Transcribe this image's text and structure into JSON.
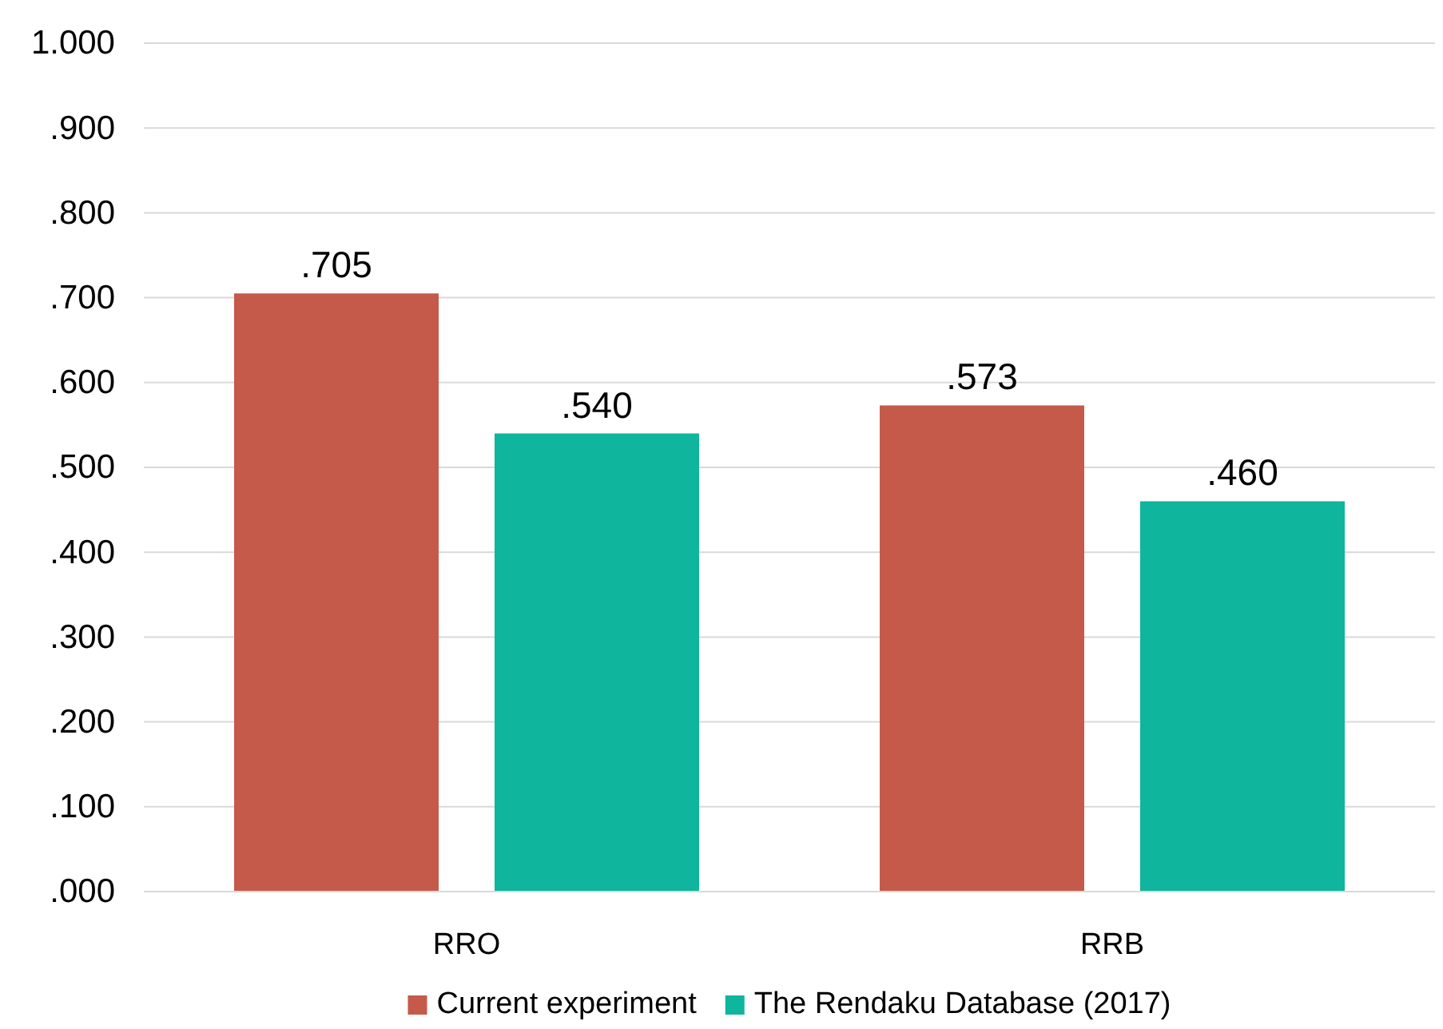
{
  "chart_data": {
    "type": "bar",
    "categories": [
      "RRO",
      "RRB"
    ],
    "series": [
      {
        "name": "Current experiment",
        "color": "#c55a4a",
        "values": [
          0.705,
          0.573
        ],
        "value_labels": [
          ".705",
          ".573"
        ]
      },
      {
        "name": "The Rendaku Database (2017)",
        "color": "#0fb59c",
        "values": [
          0.54,
          0.46
        ],
        "value_labels": [
          ".540",
          ".460"
        ]
      }
    ],
    "ylim": [
      0,
      1
    ],
    "yticks": [
      {
        "value": 0,
        "label": ".000"
      },
      {
        "value": 0.1,
        "label": ".100"
      },
      {
        "value": 0.2,
        "label": ".200"
      },
      {
        "value": 0.3,
        "label": ".300"
      },
      {
        "value": 0.4,
        "label": ".400"
      },
      {
        "value": 0.5,
        "label": ".500"
      },
      {
        "value": 0.6,
        "label": ".600"
      },
      {
        "value": 0.7,
        "label": ".700"
      },
      {
        "value": 0.8,
        "label": ".800"
      },
      {
        "value": 0.9,
        "label": ".900"
      },
      {
        "value": 1,
        "label": "1.000"
      }
    ],
    "grid": "y",
    "legend": "bottom"
  }
}
